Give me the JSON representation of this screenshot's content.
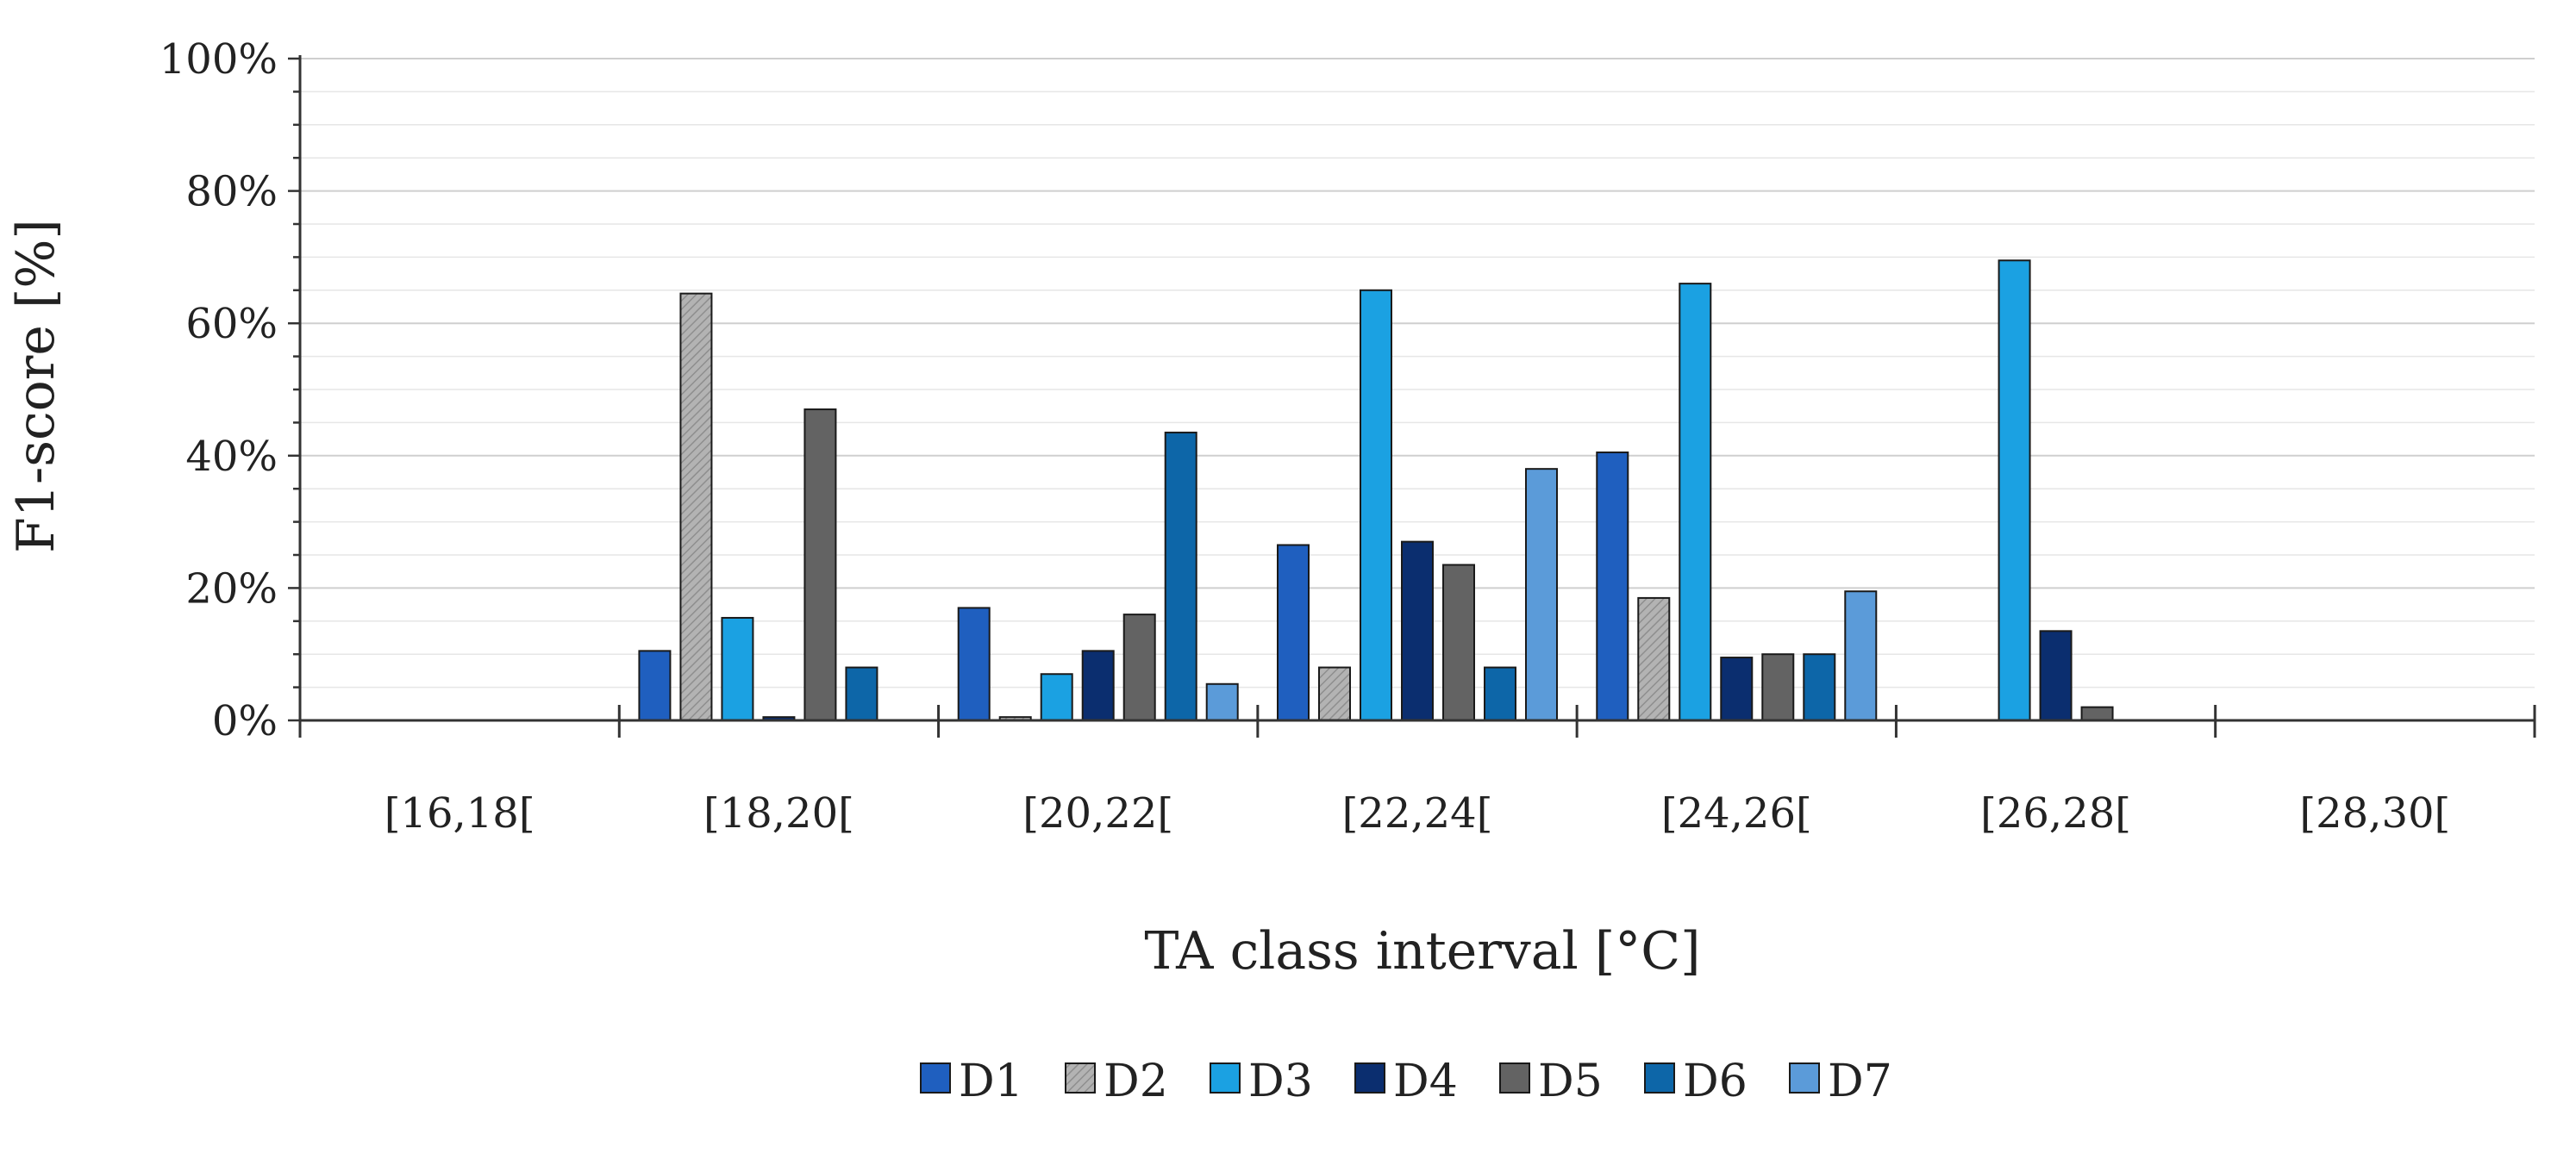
{
  "chart_data": {
    "type": "bar",
    "title": "",
    "xlabel": "TA class interval [°C]",
    "ylabel": "F1-score [%]",
    "ylim": [
      0,
      100
    ],
    "y_ticks": [
      "0%",
      "20%",
      "40%",
      "60%",
      "80%",
      "100%"
    ],
    "y_tick_values": [
      0,
      20,
      40,
      60,
      80,
      100
    ],
    "grid": true,
    "legend_position": "bottom-center",
    "categories": [
      "[16,18[",
      "[18,20[",
      "[20,22[",
      "[22,24[",
      "[24,26[",
      "[26,28[",
      "[28,30["
    ],
    "series": [
      {
        "name": "D1",
        "color": "#1f5fbf",
        "pattern": "solid",
        "values": [
          0,
          10.5,
          17,
          26.5,
          40.5,
          0,
          0
        ]
      },
      {
        "name": "D2",
        "color": "#aaaaaa",
        "pattern": "hatched",
        "values": [
          0,
          64.5,
          0.5,
          8,
          18.5,
          0,
          0
        ]
      },
      {
        "name": "D3",
        "color": "#1ba1e2",
        "pattern": "solid",
        "values": [
          0,
          15.5,
          7,
          65,
          66,
          69.5,
          0
        ]
      },
      {
        "name": "D4",
        "color": "#0b2e6f",
        "pattern": "solid",
        "values": [
          0,
          0.5,
          10.5,
          27,
          9.5,
          13.5,
          0
        ]
      },
      {
        "name": "D5",
        "color": "#636363",
        "pattern": "solid",
        "values": [
          0,
          47,
          16,
          23.5,
          10,
          2,
          0
        ]
      },
      {
        "name": "D6",
        "color": "#0d66a8",
        "pattern": "solid",
        "values": [
          0,
          8,
          43.5,
          8,
          10,
          0,
          0
        ]
      },
      {
        "name": "D7",
        "color": "#5b9bd9",
        "pattern": "solid",
        "values": [
          0,
          0,
          5.5,
          38,
          19.5,
          0,
          0
        ]
      }
    ]
  }
}
